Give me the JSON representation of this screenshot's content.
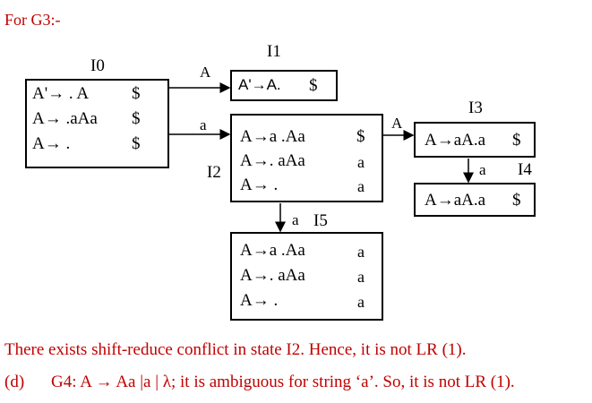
{
  "heading": "For G3:-",
  "states": {
    "I0": {
      "name": "I0",
      "items": [
        {
          "rule": "A'→ . A",
          "la": "$"
        },
        {
          "rule": "A→ .aAa",
          "la": "$"
        },
        {
          "rule": "A→ .",
          "la": "$"
        }
      ]
    },
    "I1": {
      "name": "I1",
      "items": [
        {
          "rule": "A'→A.",
          "la": "$"
        }
      ]
    },
    "I2": {
      "name": "I2",
      "items": [
        {
          "rule": "A→a .Aa",
          "la": "$"
        },
        {
          "rule": "A→. aAa",
          "la": "a"
        },
        {
          "rule": "A→ .",
          "la": "a"
        }
      ]
    },
    "I3": {
      "name": "I3",
      "items": [
        {
          "rule": "A→aA.a",
          "la": "$"
        }
      ]
    },
    "I4": {
      "name": "I4",
      "items": [
        {
          "rule": "A→aA.a",
          "la": "$"
        }
      ]
    },
    "I5": {
      "name": "I5",
      "items": [
        {
          "rule": "A→a .Aa",
          "la": "a"
        },
        {
          "rule": "A→. aAa",
          "la": "a"
        },
        {
          "rule": "A→ .",
          "la": "a"
        }
      ]
    }
  },
  "transitions": {
    "i0_i1": "A",
    "i0_i2": "a",
    "i2_i3": "A",
    "i3_i4": "a",
    "i2_i5": "a"
  },
  "conclusion": "There exists shift-reduce conflict in state I2. Hence, it is not LR (1).",
  "part_d": {
    "marker": "(d)",
    "text": "G4: A → Aa |a | λ; it is ambiguous for string ‘a’. So, it is not LR (1)."
  },
  "colors": {
    "text_red": "#c00000",
    "line": "#000000"
  }
}
